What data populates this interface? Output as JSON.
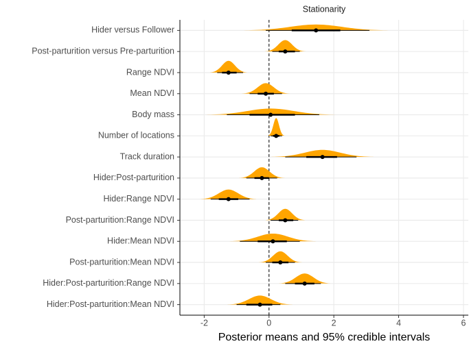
{
  "chart_data": {
    "type": "forest",
    "title": "Stationarity",
    "x_label": "Posterior means and 95% credible intervals",
    "categories": [
      "Hider versus Follower",
      "Post-parturition versus Pre-parturition",
      "Range NDVI",
      "Mean NDVI",
      "Body mass",
      "Number of locations",
      "Track duration",
      "Hider:Post-parturition",
      "Hider:Range NDVI",
      "Post-parturition:Range NDVI",
      "Hider:Mean NDVI",
      "Post-parturition:Mean NDVI",
      "Hider:Post-parturition:Range NDVI",
      "Hider:Post-parturition:Mean NDVI"
    ],
    "means": [
      1.45,
      0.5,
      -1.25,
      -0.1,
      0.05,
      0.22,
      1.65,
      -0.22,
      -1.25,
      0.5,
      0.12,
      0.35,
      1.1,
      -0.28
    ],
    "inner_intervals": [
      [
        0.7,
        2.2
      ],
      [
        0.3,
        0.8
      ],
      [
        -1.45,
        -1.0
      ],
      [
        -0.35,
        0.15
      ],
      [
        -0.6,
        0.8
      ],
      [
        0.12,
        0.32
      ],
      [
        1.15,
        2.1
      ],
      [
        -0.45,
        0.0
      ],
      [
        -1.55,
        -0.95
      ],
      [
        0.3,
        0.75
      ],
      [
        -0.35,
        0.55
      ],
      [
        0.1,
        0.6
      ],
      [
        0.8,
        1.4
      ],
      [
        -0.7,
        0.1
      ]
    ],
    "outer_intervals": [
      [
        -0.1,
        3.1
      ],
      [
        0.1,
        0.95
      ],
      [
        -1.6,
        -0.8
      ],
      [
        -0.6,
        0.4
      ],
      [
        -1.3,
        1.55
      ],
      [
        0.05,
        0.4
      ],
      [
        0.5,
        2.7
      ],
      [
        -0.7,
        0.25
      ],
      [
        -1.8,
        -0.6
      ],
      [
        0.05,
        0.9
      ],
      [
        -0.9,
        0.95
      ],
      [
        -0.1,
        0.8
      ],
      [
        0.5,
        1.6
      ],
      [
        -1.0,
        0.35
      ]
    ],
    "density_color": "#FFA500",
    "reference_line": 0,
    "xlim": [
      -2.75,
      6.15
    ],
    "xticks": [
      -2,
      0,
      2,
      4,
      6
    ],
    "grid": true
  }
}
